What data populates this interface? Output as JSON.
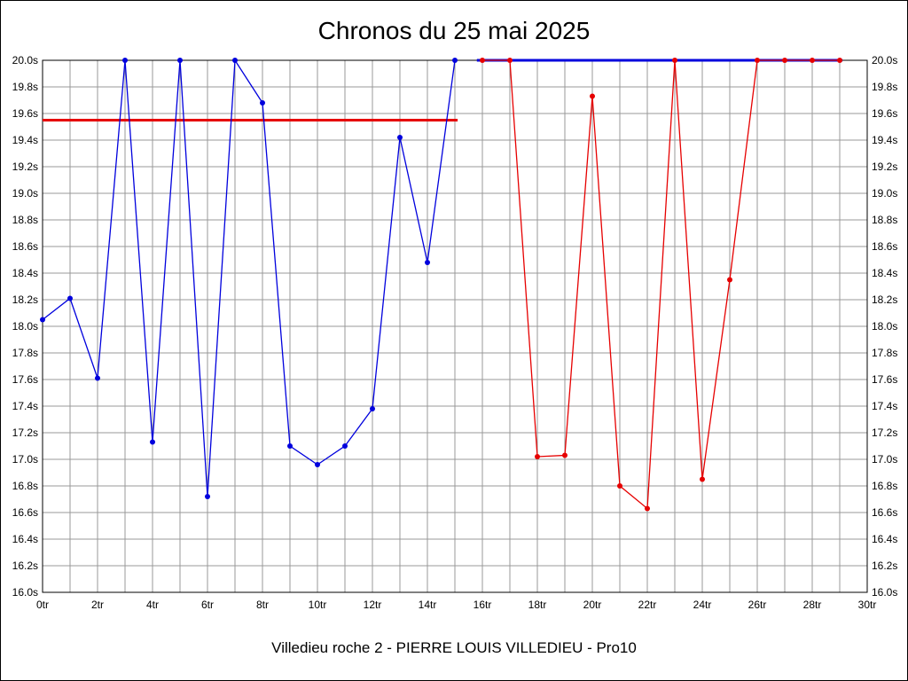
{
  "colors": {
    "blue": "#0000dd",
    "red": "#e60000",
    "grid": "#999999",
    "axis": "#000000",
    "background": "#ffffff",
    "text": "#000000"
  },
  "chart_data": {
    "type": "line",
    "title": "Chronos du 25 mai 2025",
    "subtitle": "Villedieu roche 2 - PIERRE LOUIS VILLEDIEU - Pro10",
    "x_unit": "tr",
    "y_unit": "s",
    "xlim": [
      0,
      30
    ],
    "ylim": [
      16.0,
      20.0
    ],
    "grid": true,
    "x_gridline_step": 1,
    "y_gridline_step": 0.2,
    "x_tick_labels": [
      "0tr",
      "2tr",
      "4tr",
      "6tr",
      "8tr",
      "10tr",
      "12tr",
      "14tr",
      "16tr",
      "18tr",
      "20tr",
      "22tr",
      "24tr",
      "26tr",
      "28tr",
      "30tr"
    ],
    "y_tick_labels": [
      "20.0s",
      "19.8s",
      "19.6s",
      "19.4s",
      "19.2s",
      "19.0s",
      "18.8s",
      "18.6s",
      "18.4s",
      "18.2s",
      "18.0s",
      "17.8s",
      "17.6s",
      "17.4s",
      "17.2s",
      "17.0s",
      "16.8s",
      "16.6s",
      "16.4s",
      "16.2s",
      "16.0s"
    ],
    "series": [
      {
        "name": "blue-rider-laps",
        "color": "#0000dd",
        "x": [
          0,
          1,
          2,
          3,
          4,
          5,
          6,
          7,
          8,
          9,
          10,
          11,
          12,
          13,
          14,
          15
        ],
        "values": [
          18.05,
          18.21,
          17.61,
          20.0,
          17.13,
          20.0,
          16.72,
          20.0,
          19.68,
          17.1,
          16.96,
          17.1,
          17.38,
          19.42,
          18.48,
          20.0
        ]
      },
      {
        "name": "red-rider-laps",
        "color": "#e60000",
        "x": [
          16,
          17,
          18,
          19,
          20,
          21,
          22,
          23,
          24,
          25,
          26,
          27,
          28,
          29
        ],
        "values": [
          20.0,
          20.0,
          17.02,
          17.03,
          19.73,
          16.8,
          16.63,
          20.0,
          16.85,
          18.35,
          20.0,
          20.0,
          20.0,
          20.0
        ]
      }
    ],
    "reference_lines": [
      {
        "name": "red-reference-line",
        "color": "#e60000",
        "value": 19.55,
        "x_start": 0,
        "x_end": 15.1,
        "width": 3
      },
      {
        "name": "blue-reference-line",
        "color": "#0000dd",
        "value": 20.0,
        "x_start": 15.8,
        "x_end": 29.1,
        "width": 3
      }
    ],
    "legend_position": "none"
  }
}
